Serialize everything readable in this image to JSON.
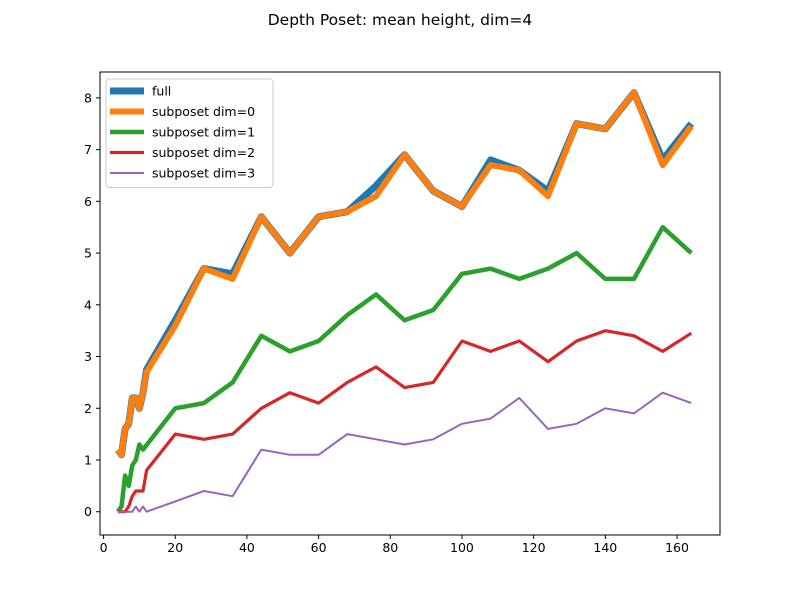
{
  "chart_data": {
    "type": "line",
    "title": "Depth Poset: mean height, dim=4",
    "xlabel": "",
    "ylabel": "",
    "xlim": [
      -1,
      172
    ],
    "ylim": [
      -0.45,
      8.5
    ],
    "xticks": [
      0,
      20,
      40,
      60,
      80,
      100,
      120,
      140,
      160
    ],
    "yticks": [
      0,
      1,
      2,
      3,
      4,
      5,
      6,
      7,
      8
    ],
    "grid": false,
    "legend_position": "upper-left",
    "series": [
      {
        "name": "full",
        "color": "#1f77b4",
        "x": [
          4,
          5,
          6,
          7,
          8,
          9,
          10,
          11,
          12,
          20,
          28,
          36,
          44,
          52,
          60,
          68,
          76,
          84,
          92,
          100,
          108,
          116,
          124,
          132,
          140,
          148,
          156,
          164
        ],
        "y": [
          1.2,
          1.1,
          1.6,
          1.7,
          2.2,
          2.2,
          2.0,
          2.3,
          2.75,
          3.7,
          4.7,
          4.6,
          5.7,
          5.0,
          5.7,
          5.8,
          6.3,
          6.9,
          6.2,
          5.9,
          6.8,
          6.6,
          6.2,
          7.5,
          7.4,
          8.1,
          6.8,
          7.5
        ]
      },
      {
        "name": "subposet dim=0",
        "color": "#ff7f0e",
        "x": [
          4,
          5,
          6,
          7,
          8,
          9,
          10,
          11,
          12,
          20,
          28,
          36,
          44,
          52,
          60,
          68,
          76,
          84,
          92,
          100,
          108,
          116,
          124,
          132,
          140,
          148,
          156,
          164
        ],
        "y": [
          1.2,
          1.1,
          1.6,
          1.7,
          2.2,
          2.2,
          2.0,
          2.3,
          2.7,
          3.6,
          4.7,
          4.5,
          5.7,
          5.0,
          5.7,
          5.8,
          6.1,
          6.9,
          6.2,
          5.9,
          6.7,
          6.6,
          6.1,
          7.5,
          7.4,
          8.1,
          6.7,
          7.45
        ]
      },
      {
        "name": "subposet dim=1",
        "color": "#2ca02c",
        "x": [
          4,
          5,
          6,
          7,
          8,
          9,
          10,
          11,
          20,
          28,
          36,
          44,
          52,
          60,
          68,
          76,
          84,
          92,
          100,
          108,
          116,
          124,
          132,
          140,
          148,
          156,
          164
        ],
        "y": [
          0.0,
          0.1,
          0.7,
          0.5,
          0.9,
          1.0,
          1.3,
          1.2,
          2.0,
          2.1,
          2.5,
          3.4,
          3.1,
          3.3,
          3.8,
          4.2,
          3.7,
          3.9,
          4.6,
          4.7,
          4.5,
          4.7,
          5.0,
          4.5,
          4.5,
          5.5,
          5.0
        ]
      },
      {
        "name": "subposet dim=2",
        "color": "#d62728",
        "x": [
          4,
          5,
          6,
          7,
          8,
          9,
          10,
          11,
          12,
          20,
          28,
          36,
          44,
          52,
          60,
          68,
          76,
          84,
          92,
          100,
          108,
          116,
          124,
          132,
          140,
          148,
          156,
          164
        ],
        "y": [
          0.0,
          0.0,
          0.0,
          0.1,
          0.3,
          0.4,
          0.4,
          0.4,
          0.8,
          1.5,
          1.4,
          1.5,
          2.0,
          2.3,
          2.1,
          2.5,
          2.8,
          2.4,
          2.5,
          3.3,
          3.1,
          3.3,
          2.9,
          3.3,
          3.5,
          3.4,
          3.1,
          3.45
        ]
      },
      {
        "name": "subposet dim=3",
        "color": "#9467bd",
        "x": [
          4,
          5,
          6,
          7,
          8,
          9,
          10,
          11,
          12,
          20,
          28,
          36,
          44,
          52,
          60,
          68,
          76,
          84,
          92,
          100,
          108,
          116,
          124,
          132,
          140,
          148,
          156,
          164
        ],
        "y": [
          0.0,
          0.0,
          0.0,
          0.0,
          0.0,
          0.1,
          0.0,
          0.1,
          0.0,
          0.2,
          0.4,
          0.3,
          1.2,
          1.1,
          1.1,
          1.5,
          1.4,
          1.3,
          1.4,
          1.7,
          1.8,
          2.2,
          1.6,
          1.7,
          2.0,
          1.9,
          2.3,
          2.1
        ]
      }
    ]
  }
}
